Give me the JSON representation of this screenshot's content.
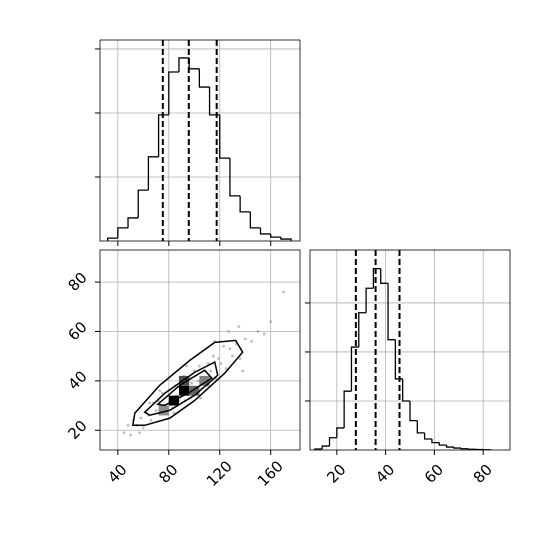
{
  "chart_data": [
    {
      "type": "histogram",
      "grid": true,
      "line_color": "#000000",
      "show_xtick_labels": false,
      "show_ytick_labels": false,
      "bins": [
        32,
        40,
        48,
        56,
        64,
        72,
        80,
        88,
        96,
        104,
        112,
        120,
        128,
        136,
        144,
        152,
        160,
        168,
        176
      ],
      "counts": [
        9,
        41,
        72,
        159,
        263,
        394,
        528,
        572,
        538,
        481,
        394,
        259,
        141,
        91,
        41,
        22,
        12,
        6
      ],
      "quantiles": [
        75.3,
        95.7,
        117.6
      ],
      "xlim": [
        26,
        183
      ],
      "xticks": [
        40,
        80,
        120,
        160
      ],
      "ylim": [
        0,
        628
      ],
      "yticks": [
        200,
        400,
        600
      ]
    },
    {
      "type": "scatter",
      "grid": true,
      "point_color": "#808080",
      "line_color": "#000000",
      "show_xtick_labels": true,
      "show_ytick_labels": true,
      "x": [
        45,
        50,
        52,
        55,
        58,
        60,
        62,
        64,
        66,
        68,
        70,
        72,
        74,
        75,
        77,
        78,
        80,
        82,
        83,
        85,
        86,
        88,
        89,
        90,
        92,
        93,
        95,
        96,
        97,
        98,
        100,
        101,
        103,
        104,
        106,
        108,
        110,
        111,
        113,
        115,
        117,
        119,
        121,
        123,
        125,
        128,
        130,
        133,
        136,
        140,
        145,
        150,
        155,
        160,
        48,
        57,
        65,
        73,
        84,
        94,
        105,
        116,
        127,
        138,
        170,
        135
      ],
      "y": [
        19,
        18,
        24,
        22,
        25,
        21,
        27,
        26,
        24,
        31,
        28,
        32,
        27,
        35,
        30,
        28,
        34,
        32,
        29,
        38,
        34,
        32,
        39,
        35,
        42,
        32,
        37,
        41,
        33,
        39,
        44,
        36,
        40,
        46,
        37,
        44,
        38,
        47,
        44,
        50,
        41,
        49,
        47,
        54,
        45,
        53,
        50,
        55,
        49,
        57,
        56,
        60,
        59,
        64,
        22,
        19,
        31,
        36,
        27,
        46,
        33,
        56,
        60,
        44,
        76,
        62
      ],
      "cells": {
        "x": [
          84,
          92,
          100,
          108,
          92,
          76
        ],
        "y": [
          32,
          36,
          36,
          40,
          40,
          28
        ],
        "density": [
          1,
          1,
          0.6,
          0.5,
          0.7,
          0.45
        ]
      },
      "cell_size": [
        8,
        4
      ],
      "contours": [
        {
          "x": [
            51.8,
            53.3,
            72.9,
            96.5,
            116.1,
            132.5,
            138.0,
            123.9,
            100.4,
            80.8,
            61.2
          ],
          "y": [
            22.0,
            26.9,
            38.2,
            48.3,
            55.6,
            56.4,
            51.6,
            43.1,
            32.1,
            24.9,
            22.0
          ]
        },
        {
          "x": [
            61.2,
            76.9,
            100.4,
            116.1,
            118.4,
            100.4,
            80.8,
            65.1
          ],
          "y": [
            27.3,
            35.0,
            43.5,
            47.6,
            42.3,
            34.2,
            28.1,
            26.1
          ]
        },
        {
          "x": [
            71.4,
            88.6,
            108.2,
            113.7,
            96.5,
            76.9
          ],
          "y": [
            30.5,
            38.2,
            44.3,
            41.1,
            35.4,
            30.1
          ]
        }
      ],
      "xlim": [
        26,
        183
      ],
      "xticks": [
        40,
        80,
        120,
        160
      ],
      "ylim": [
        12,
        93
      ],
      "yticks": [
        20,
        40,
        60,
        80
      ]
    },
    {
      "type": "histogram",
      "grid": true,
      "line_color": "#000000",
      "show_xtick_labels": true,
      "show_ytick_labels": false,
      "bins": [
        11,
        14,
        17,
        20,
        23,
        26,
        29,
        32,
        35,
        38,
        41,
        44,
        47,
        50,
        53,
        56,
        59,
        62,
        65,
        68,
        71,
        74,
        77,
        80,
        83
      ],
      "counts": [
        4,
        16,
        50,
        90,
        240,
        420,
        560,
        660,
        740,
        680,
        450,
        290,
        200,
        120,
        70,
        45,
        30,
        20,
        12,
        8,
        5,
        3,
        2,
        1
      ],
      "quantiles": [
        27.8,
        35.9,
        45.7
      ],
      "xlim": [
        9,
        91
      ],
      "xticks": [
        20,
        40,
        60,
        80
      ],
      "ylim": [
        0,
        816
      ],
      "yticks": [
        200,
        400,
        600
      ]
    }
  ]
}
